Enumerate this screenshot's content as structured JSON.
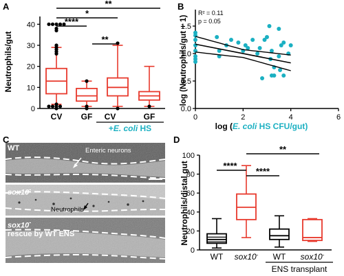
{
  "panels": {
    "A": {
      "letter": "A",
      "ylabel": "Neutrophils/gut",
      "yticks": [
        "0",
        "10",
        "20",
        "30",
        "40"
      ],
      "categories": [
        "CV",
        "GF",
        "CV",
        "GF"
      ],
      "group_label_prefix": "+",
      "group_label_ecoli": "E. coli",
      "group_label_suffix": " HS",
      "sig": [
        "****",
        "*",
        "**",
        "**"
      ],
      "colors": {
        "black": "#000000",
        "red": "#e8392c"
      }
    },
    "B": {
      "letter": "B",
      "ylabel": "log (Neutrophils/gut + 1)",
      "xlabel_pre": "log (",
      "xlabel_ecoli": "E. coli",
      "xlabel_post": " HS CFU/gut)",
      "xticks": [
        "0",
        "2",
        "4",
        "6"
      ],
      "yticks": [
        "0.0",
        "0.5",
        "1.0",
        "1.5"
      ],
      "r2": "R² = 0.11",
      "p": "p = 0.05",
      "colors": {
        "point": "#1bb0c2"
      }
    },
    "C": {
      "letter": "C",
      "img1_label": "WT",
      "img1_annot": "Enteric neurons",
      "img2_label": "sox10",
      "img2_sup": "-",
      "img2_annot": "Neutrophils",
      "img3_label": "sox10",
      "img3_sup": "-",
      "img3_label2": "rescue by WT ENS"
    },
    "D": {
      "letter": "D",
      "ylabel": "Neutrophils/distal gut",
      "yticks": [
        "0",
        "20",
        "40",
        "60",
        "80",
        "100"
      ],
      "categories": [
        "WT",
        "sox10",
        "WT",
        "sox10"
      ],
      "category_sup": "-",
      "group_label": "ENS transplant",
      "sig": [
        "****",
        "****",
        "**"
      ]
    }
  },
  "chart_data": [
    {
      "type": "box",
      "panel": "A",
      "ylabel": "Neutrophils/gut",
      "ylim": [
        0,
        45
      ],
      "categories": [
        "CV",
        "GF",
        "CV",
        "GF"
      ],
      "series": [
        {
          "name": "CV",
          "min": 2,
          "q1": 7,
          "median": 13,
          "q3": 19,
          "max": 29,
          "outliers": [
            40,
            40,
            40,
            40,
            40,
            38,
            37,
            30,
            29,
            28,
            27,
            26,
            2,
            1,
            1,
            1,
            1,
            0
          ]
        },
        {
          "name": "GF",
          "min": 1,
          "q1": 3.5,
          "median": 6,
          "q3": 9.5,
          "max": 13,
          "outliers": [
            13,
            1,
            0
          ]
        },
        {
          "name": "CV",
          "min": 1,
          "q1": 6,
          "median": 10,
          "q3": 14.5,
          "max": 30,
          "outliers": [
            31,
            0
          ]
        },
        {
          "name": "GF",
          "min": 1,
          "q1": 4,
          "median": 6,
          "q3": 8,
          "max": 20,
          "outliers": [
            1
          ]
        }
      ],
      "significance": [
        {
          "from": 0,
          "to": 1,
          "label": "****"
        },
        {
          "from": 0,
          "to": 2,
          "label": "*"
        },
        {
          "from": 1,
          "to": 2,
          "label": "**"
        },
        {
          "from": 0,
          "to": 3,
          "label": "**"
        }
      ]
    },
    {
      "type": "scatter",
      "panel": "B",
      "xlabel": "log (E. coli HS CFU/gut)",
      "ylabel": "log (Neutrophils/gut + 1)",
      "xlim": [
        0,
        6
      ],
      "ylim": [
        0,
        1.8
      ],
      "points": [
        [
          0,
          1.38
        ],
        [
          0,
          1.33
        ],
        [
          0,
          1.25
        ],
        [
          0,
          1.15
        ],
        [
          0,
          1.05
        ],
        [
          0,
          0.95
        ],
        [
          0,
          0.9
        ],
        [
          0,
          0.85
        ],
        [
          0.9,
          1.3
        ],
        [
          1.0,
          1.05
        ],
        [
          1.0,
          0.95
        ],
        [
          1.3,
          1.15
        ],
        [
          1.5,
          1.25
        ],
        [
          1.8,
          1.2
        ],
        [
          2.0,
          1.05
        ],
        [
          2.1,
          1.15
        ],
        [
          2.2,
          1.1
        ],
        [
          2.4,
          1.25
        ],
        [
          2.6,
          1.0
        ],
        [
          2.7,
          1.1
        ],
        [
          2.9,
          1.25
        ],
        [
          2.8,
          0.55
        ],
        [
          3.1,
          1.5
        ],
        [
          3.0,
          1.3
        ],
        [
          3.2,
          1.05
        ],
        [
          3.15,
          0.9
        ],
        [
          3.3,
          0.75
        ],
        [
          3.2,
          0.6
        ],
        [
          3.3,
          0.6
        ],
        [
          3.5,
          1.45
        ],
        [
          3.6,
          1.15
        ],
        [
          3.7,
          1.2
        ],
        [
          3.5,
          0.95
        ],
        [
          3.55,
          0.7
        ],
        [
          3.7,
          0.6
        ],
        [
          3.9,
          1.0
        ],
        [
          4.0,
          1.15
        ]
      ],
      "fit": {
        "slope": -0.085,
        "intercept": 1.17,
        "x_range": [
          0,
          4
        ],
        "ci_width": 0.13
      }
    },
    {
      "type": "box",
      "panel": "D",
      "ylabel": "Neutrophils/distal gut",
      "ylim": [
        0,
        100
      ],
      "categories": [
        "WT",
        "sox10",
        "WT",
        "sox10"
      ],
      "series": [
        {
          "name": "WT",
          "min": 2,
          "q1": 7,
          "median": 11,
          "q3": 17,
          "max": 33,
          "color": "#000000"
        },
        {
          "name": "sox10",
          "min": 13,
          "q1": 32,
          "median": 45,
          "q3": 59,
          "max": 89,
          "color": "#e8392c"
        },
        {
          "name": "WT",
          "min": 3,
          "q1": 11,
          "median": 15,
          "q3": 22,
          "max": 36,
          "color": "#000000"
        },
        {
          "name": "sox10",
          "min": 9,
          "q1": 10,
          "median": 13,
          "q3": 32,
          "max": 33,
          "color": "#e8392c"
        }
      ],
      "significance": [
        {
          "from": 0,
          "to": 1,
          "label": "****"
        },
        {
          "from": 1,
          "to": 2,
          "label": "****"
        },
        {
          "from": 1,
          "to": 3,
          "label": "**"
        }
      ]
    }
  ]
}
